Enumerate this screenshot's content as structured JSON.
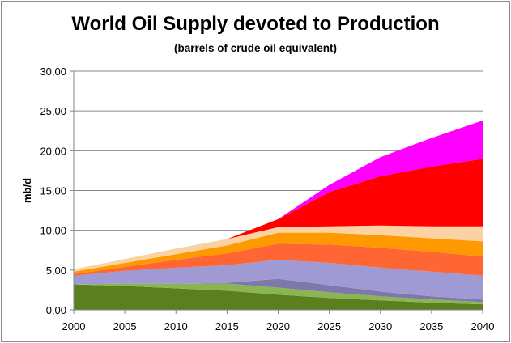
{
  "chart_data": {
    "type": "area",
    "stacked": true,
    "title": "World Oil Supply devoted to Production",
    "subtitle": "(barrels of crude oil equivalent)",
    "ylabel": "mb/d",
    "xlabel": "",
    "x": [
      2000,
      2005,
      2010,
      2015,
      2020,
      2025,
      2030,
      2035,
      2040
    ],
    "x_tick_labels": [
      "2000",
      "2005",
      "2010",
      "2015",
      "2020",
      "2025",
      "2030",
      "2035",
      "2040"
    ],
    "ylim": [
      0,
      30
    ],
    "y_ticks": [
      0,
      5,
      10,
      15,
      20,
      25,
      30
    ],
    "y_tick_labels": [
      "0,00",
      "5,00",
      "10,00",
      "15,00",
      "20,00",
      "25,00",
      "30,00"
    ],
    "grid": "horizontal",
    "series": [
      {
        "color": "#5b7f1f",
        "values": [
          3.2,
          3.0,
          2.7,
          2.4,
          1.9,
          1.5,
          1.2,
          0.9,
          0.7
        ]
      },
      {
        "color": "#8ab552",
        "values": [
          0.0,
          0.3,
          0.6,
          0.9,
          0.9,
          0.7,
          0.5,
          0.4,
          0.3
        ]
      },
      {
        "color": "#7f78ab",
        "values": [
          0.0,
          0.0,
          0.0,
          0.1,
          1.1,
          0.9,
          0.6,
          0.4,
          0.3
        ]
      },
      {
        "color": "#9f9ad4",
        "values": [
          1.1,
          1.6,
          2.0,
          2.2,
          2.4,
          2.8,
          3.0,
          3.1,
          3.0
        ]
      },
      {
        "color": "#ff6633",
        "values": [
          0.2,
          0.5,
          1.0,
          1.5,
          2.0,
          2.3,
          2.5,
          2.5,
          2.4
        ]
      },
      {
        "color": "#ff9900",
        "values": [
          0.3,
          0.5,
          0.7,
          1.0,
          1.4,
          1.5,
          1.6,
          1.7,
          1.9
        ]
      },
      {
        "color": "#fbd3a3",
        "values": [
          0.3,
          0.5,
          0.7,
          0.8,
          0.7,
          0.8,
          1.2,
          1.5,
          1.9
        ]
      },
      {
        "color": "#ff0000",
        "values": [
          0.0,
          0.0,
          0.0,
          0.0,
          1.0,
          4.3,
          6.2,
          7.5,
          8.5
        ]
      },
      {
        "color": "#ff00ff",
        "values": [
          0.0,
          0.0,
          0.0,
          0.0,
          0.0,
          0.9,
          2.4,
          3.6,
          4.8
        ]
      }
    ]
  }
}
